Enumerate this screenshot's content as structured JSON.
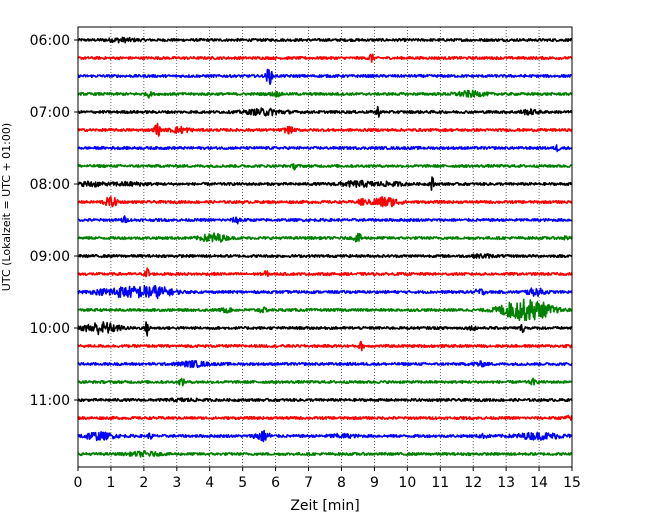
{
  "chart_data": {
    "type": "line",
    "title": "",
    "xlabel": "Zeit  [min]",
    "ylabel": "UTC (Lokalzeit = UTC + 01:00)",
    "xlim": [
      0,
      15
    ],
    "x_ticks": [
      0,
      1,
      2,
      3,
      4,
      5,
      6,
      7,
      8,
      9,
      10,
      11,
      12,
      13,
      14,
      15
    ],
    "y_ticks": [
      "06:00",
      "07:00",
      "08:00",
      "09:00",
      "10:00",
      "11:00"
    ],
    "grid_x": "dotted",
    "trace_interval_min": 15,
    "colors": [
      "#000000",
      "#ff0000",
      "#0000ff",
      "#008000"
    ],
    "traces": [
      {
        "start": "06:00",
        "color": "#000000",
        "events": [
          {
            "t": 1.3,
            "a": 0.35,
            "w": 0.3
          }
        ]
      },
      {
        "start": "06:15",
        "color": "#ff0000",
        "events": [
          {
            "t": 8.9,
            "a": 0.9,
            "w": 0.05
          }
        ]
      },
      {
        "start": "06:30",
        "color": "#0000ff",
        "events": [
          {
            "t": 5.8,
            "a": 1.8,
            "w": 0.06
          }
        ]
      },
      {
        "start": "06:45",
        "color": "#008000",
        "events": [
          {
            "t": 2.15,
            "a": 0.6,
            "w": 0.05
          },
          {
            "t": 6.0,
            "a": 0.4,
            "w": 0.1
          },
          {
            "t": 11.9,
            "a": 0.5,
            "w": 0.3
          }
        ]
      },
      {
        "start": "07:00",
        "color": "#000000",
        "events": [
          {
            "t": 5.7,
            "a": 0.6,
            "w": 0.4
          },
          {
            "t": 9.1,
            "a": 1.2,
            "w": 0.04
          },
          {
            "t": 13.7,
            "a": 0.4,
            "w": 0.2
          }
        ]
      },
      {
        "start": "07:15",
        "color": "#ff0000",
        "events": [
          {
            "t": 2.4,
            "a": 1.8,
            "w": 0.05
          },
          {
            "t": 3.1,
            "a": 0.6,
            "w": 0.2
          },
          {
            "t": 6.4,
            "a": 0.6,
            "w": 0.1
          }
        ]
      },
      {
        "start": "07:30",
        "color": "#0000ff",
        "events": [
          {
            "t": 14.55,
            "a": 0.6,
            "w": 0.05
          }
        ]
      },
      {
        "start": "07:45",
        "color": "#008000",
        "events": [
          {
            "t": 6.6,
            "a": 0.7,
            "w": 0.05
          }
        ]
      },
      {
        "start": "08:00",
        "color": "#000000",
        "events": [
          {
            "t": 0.4,
            "a": 0.5,
            "w": 0.2
          },
          {
            "t": 1.5,
            "a": 0.3,
            "w": 0.4
          },
          {
            "t": 8.5,
            "a": 0.5,
            "w": 0.4
          },
          {
            "t": 9.5,
            "a": 0.3,
            "w": 0.3
          },
          {
            "t": 10.75,
            "a": 1.5,
            "w": 0.04
          }
        ]
      },
      {
        "start": "08:15",
        "color": "#ff0000",
        "events": [
          {
            "t": 1.0,
            "a": 0.9,
            "w": 0.15
          },
          {
            "t": 8.6,
            "a": 0.9,
            "w": 0.05
          },
          {
            "t": 9.3,
            "a": 1.0,
            "w": 0.3
          }
        ]
      },
      {
        "start": "08:30",
        "color": "#0000ff",
        "events": [
          {
            "t": 1.4,
            "a": 0.7,
            "w": 0.05
          },
          {
            "t": 4.85,
            "a": 0.6,
            "w": 0.1
          }
        ]
      },
      {
        "start": "08:45",
        "color": "#008000",
        "events": [
          {
            "t": 4.1,
            "a": 0.9,
            "w": 0.25
          },
          {
            "t": 8.5,
            "a": 0.8,
            "w": 0.08
          },
          {
            "t": 14.8,
            "a": 0.4,
            "w": 0.05
          }
        ]
      },
      {
        "start": "09:00",
        "color": "#000000",
        "events": [
          {
            "t": 12.3,
            "a": 0.3,
            "w": 0.2
          }
        ]
      },
      {
        "start": "09:15",
        "color": "#ff0000",
        "events": [
          {
            "t": 2.1,
            "a": 1.5,
            "w": 0.04
          },
          {
            "t": 5.7,
            "a": 0.6,
            "w": 0.05
          }
        ]
      },
      {
        "start": "09:30",
        "color": "#0000ff",
        "events": [
          {
            "t": 1.3,
            "a": 0.9,
            "w": 0.5
          },
          {
            "t": 2.3,
            "a": 1.1,
            "w": 0.4
          },
          {
            "t": 12.2,
            "a": 0.6,
            "w": 0.1
          },
          {
            "t": 13.9,
            "a": 0.7,
            "w": 0.2
          }
        ]
      },
      {
        "start": "09:45",
        "color": "#008000",
        "events": [
          {
            "t": 4.5,
            "a": 0.4,
            "w": 0.1
          },
          {
            "t": 5.6,
            "a": 0.4,
            "w": 0.1
          },
          {
            "t": 13.2,
            "a": 1.2,
            "w": 0.35
          },
          {
            "t": 13.85,
            "a": 1.8,
            "w": 0.4
          }
        ]
      },
      {
        "start": "10:00",
        "color": "#000000",
        "events": [
          {
            "t": 0.7,
            "a": 1.2,
            "w": 0.35
          },
          {
            "t": 2.1,
            "a": 1.6,
            "w": 0.04
          },
          {
            "t": 12.0,
            "a": 0.3,
            "w": 0.1
          },
          {
            "t": 13.5,
            "a": 0.7,
            "w": 0.05
          }
        ]
      },
      {
        "start": "10:15",
        "color": "#ff0000",
        "events": [
          {
            "t": 8.6,
            "a": 0.8,
            "w": 0.05
          },
          {
            "t": 14.9,
            "a": 0.3,
            "w": 0.05
          }
        ]
      },
      {
        "start": "10:30",
        "color": "#0000ff",
        "events": [
          {
            "t": 3.5,
            "a": 0.5,
            "w": 0.3
          },
          {
            "t": 12.2,
            "a": 0.4,
            "w": 0.15
          }
        ]
      },
      {
        "start": "10:45",
        "color": "#008000",
        "events": [
          {
            "t": 3.15,
            "a": 0.8,
            "w": 0.05
          },
          {
            "t": 13.8,
            "a": 0.6,
            "w": 0.05
          }
        ]
      },
      {
        "start": "11:00",
        "color": "#000000",
        "events": [
          {
            "t": 3.2,
            "a": 0.2,
            "w": 0.3
          }
        ]
      },
      {
        "start": "11:15",
        "color": "#ff0000",
        "events": [
          {
            "t": 14.9,
            "a": 0.3,
            "w": 0.1
          }
        ]
      },
      {
        "start": "11:30",
        "color": "#0000ff",
        "events": [
          {
            "t": 0.6,
            "a": 0.7,
            "w": 0.35
          },
          {
            "t": 2.2,
            "a": 0.6,
            "w": 0.05
          },
          {
            "t": 5.6,
            "a": 1.1,
            "w": 0.15
          },
          {
            "t": 8.0,
            "a": 0.3,
            "w": 0.3
          },
          {
            "t": 12.3,
            "a": 0.3,
            "w": 0.1
          },
          {
            "t": 14.0,
            "a": 0.6,
            "w": 0.5
          }
        ]
      },
      {
        "start": "11:45",
        "color": "#008000",
        "events": [
          {
            "t": 2.0,
            "a": 0.4,
            "w": 0.3
          }
        ]
      }
    ]
  }
}
